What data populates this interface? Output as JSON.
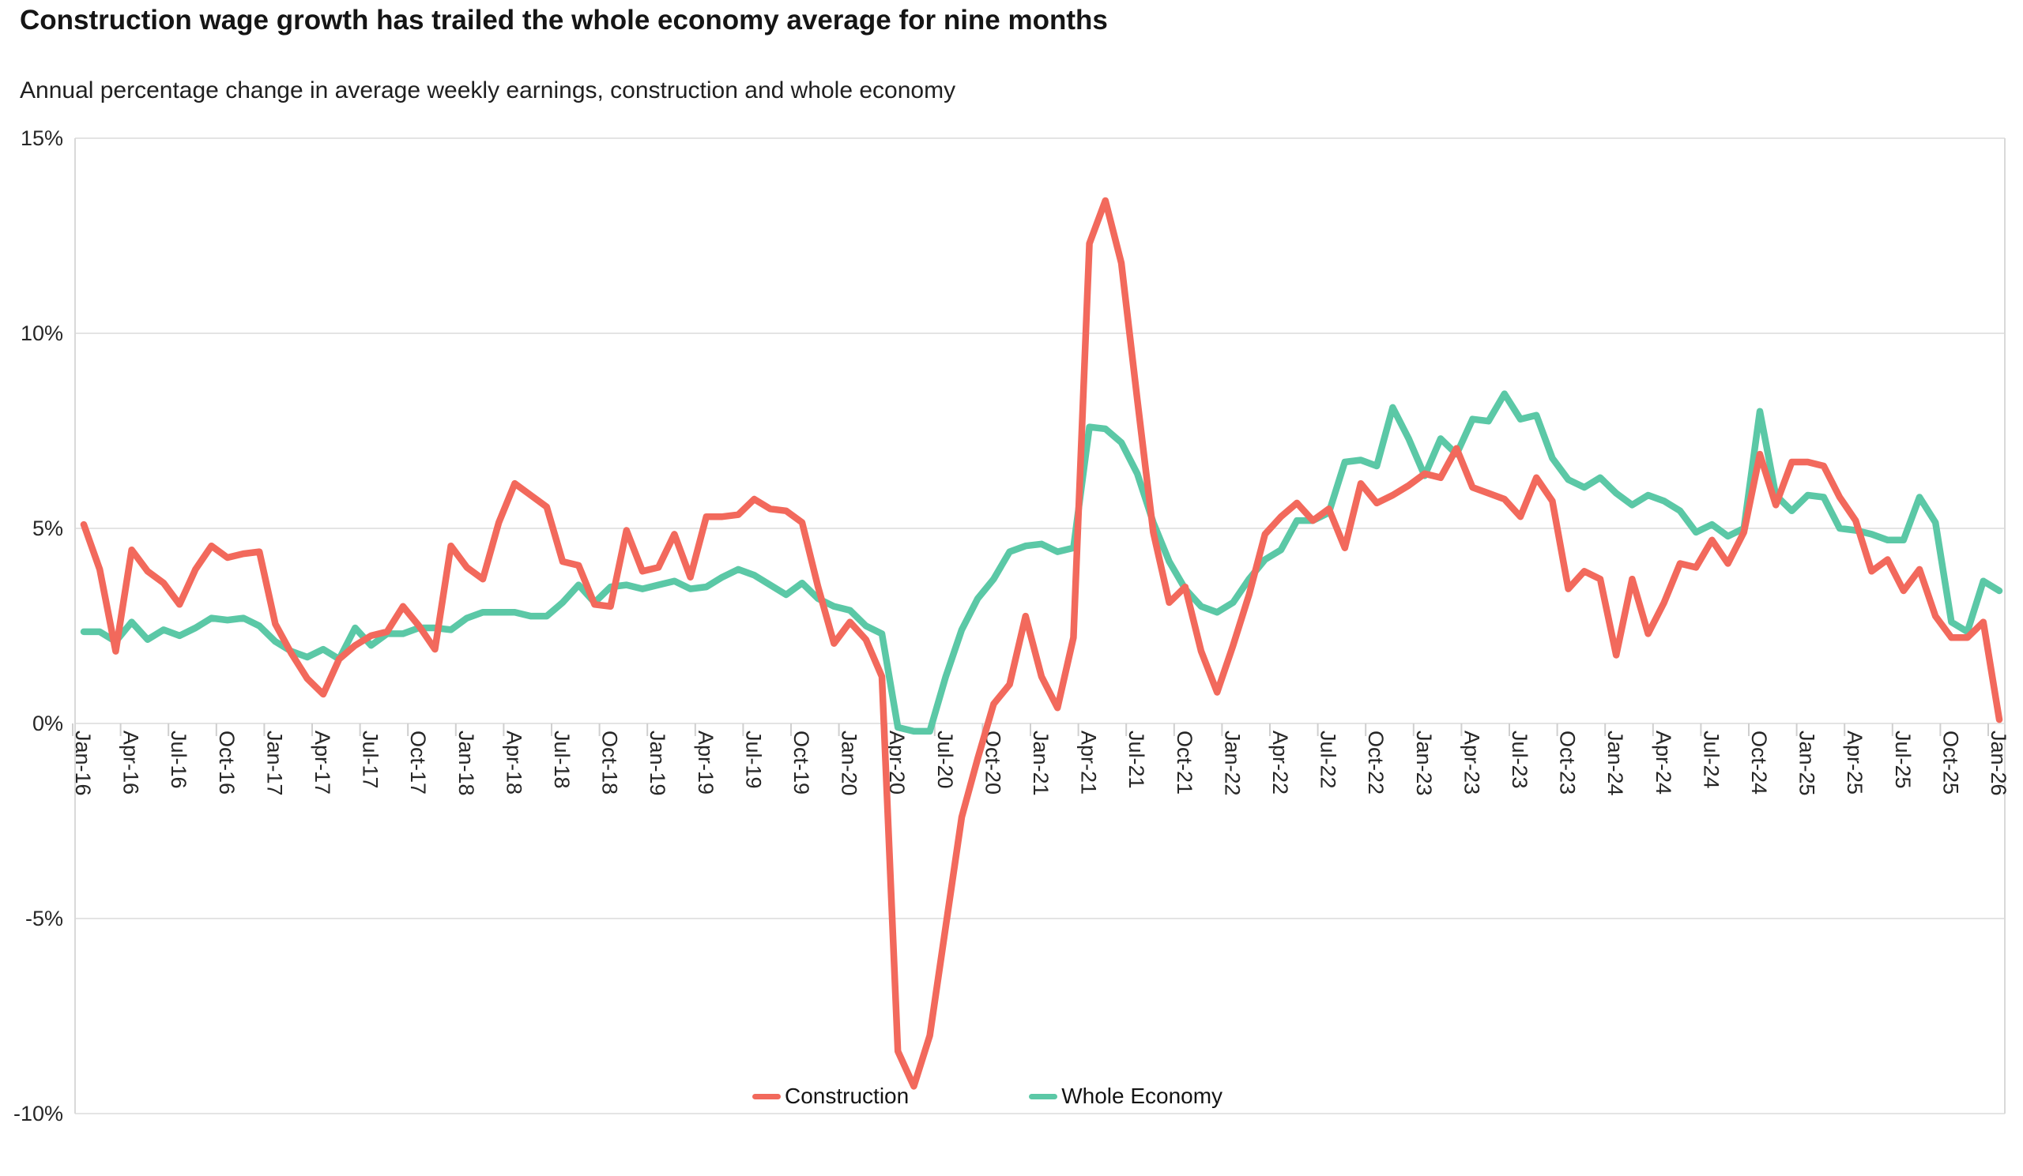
{
  "title": "Construction wage growth has trailed the whole economy average for nine months",
  "subtitle": "Annual percentage change in average weekly earnings, construction and whole economy",
  "colors": {
    "construction": "#f2695c",
    "whole_economy": "#5bc8a6",
    "gridline": "#e4e4e4",
    "axis_border": "#d9d9d9",
    "tick": "#cfcfcf",
    "label_text": "#262626"
  },
  "legend": {
    "items": [
      {
        "label": "Construction",
        "color": "#f2695c"
      },
      {
        "label": "Whole Economy",
        "color": "#5bc8a6"
      }
    ]
  },
  "y_axis": {
    "tick_labels": [
      "15%",
      "10%",
      "5%",
      "0%",
      "-5%",
      "-10%"
    ],
    "tick_values": [
      15,
      10,
      5,
      0,
      -5,
      -10
    ]
  },
  "x_axis": {
    "tick_labels": [
      "Jan-16",
      "Apr-16",
      "Jul-16",
      "Oct-16",
      "Jan-17",
      "Apr-17",
      "Jul-17",
      "Oct-17",
      "Jan-18",
      "Apr-18",
      "Jul-18",
      "Oct-18",
      "Jan-19",
      "Apr-19",
      "Jul-19",
      "Oct-19",
      "Jan-20",
      "Apr-20",
      "Jul-20",
      "Oct-20",
      "Jan-21",
      "Apr-21",
      "Jul-21",
      "Oct-21",
      "Jan-22",
      "Apr-22",
      "Jul-22",
      "Oct-22",
      "Jan-23",
      "Apr-23",
      "Jul-23",
      "Oct-23",
      "Jan-24",
      "Apr-24",
      "Jul-24",
      "Oct-24",
      "Jan-25",
      "Apr-25",
      "Jul-25",
      "Oct-25",
      "Jan-26"
    ],
    "months_per_tick": 3
  },
  "chart_data": {
    "type": "line",
    "x_start": "Jan-16",
    "x_end": "Jan-26",
    "x_frequency": "monthly",
    "ylim": [
      -10,
      15
    ],
    "grid": "horizontal",
    "legend_position": "bottom-center",
    "series": [
      {
        "name": "Whole Economy",
        "color": "#5bc8a6",
        "values": [
          2.35,
          2.35,
          2.1,
          2.6,
          2.15,
          2.4,
          2.25,
          2.45,
          2.7,
          2.65,
          2.7,
          2.5,
          2.1,
          1.85,
          1.7,
          1.9,
          1.65,
          2.45,
          2.0,
          2.3,
          2.3,
          2.45,
          2.45,
          2.4,
          2.7,
          2.85,
          2.85,
          2.85,
          2.75,
          2.75,
          3.1,
          3.55,
          3.1,
          3.5,
          3.55,
          3.45,
          3.55,
          3.65,
          3.45,
          3.5,
          3.75,
          3.95,
          3.8,
          3.55,
          3.3,
          3.6,
          3.2,
          3.0,
          2.9,
          2.5,
          2.3,
          -0.1,
          -0.2,
          -0.2,
          1.2,
          2.4,
          3.2,
          3.7,
          4.4,
          4.55,
          4.6,
          4.4,
          4.5,
          7.6,
          7.55,
          7.2,
          6.4,
          5.15,
          4.15,
          3.45,
          3.0,
          2.85,
          3.1,
          3.7,
          4.2,
          4.45,
          5.2,
          5.2,
          5.4,
          6.7,
          6.75,
          6.6,
          8.1,
          7.3,
          6.35,
          7.3,
          6.9,
          7.8,
          7.75,
          8.45,
          7.8,
          7.9,
          6.8,
          6.25,
          6.05,
          6.3,
          5.9,
          5.6,
          5.85,
          5.7,
          5.45,
          4.9,
          5.1,
          4.8,
          5.0,
          8.0,
          5.85,
          5.45,
          5.85,
          5.8,
          5.0,
          4.95,
          4.85,
          4.7,
          4.7,
          5.8,
          5.15,
          2.6,
          2.35,
          3.65,
          3.4
        ]
      },
      {
        "name": "Construction",
        "color": "#f2695c",
        "values": [
          5.1,
          3.95,
          1.85,
          4.45,
          3.9,
          3.6,
          3.05,
          3.95,
          4.55,
          4.25,
          4.35,
          4.4,
          2.55,
          1.8,
          1.15,
          0.75,
          1.65,
          2.0,
          2.25,
          2.35,
          3.0,
          2.5,
          1.9,
          4.55,
          4.0,
          3.7,
          5.15,
          6.15,
          5.85,
          5.55,
          4.15,
          4.05,
          3.05,
          3.0,
          4.95,
          3.9,
          4.0,
          4.85,
          3.75,
          5.3,
          5.3,
          5.35,
          5.75,
          5.5,
          5.45,
          5.15,
          3.5,
          2.05,
          2.6,
          2.15,
          1.2,
          -8.4,
          -9.3,
          -8.0,
          -5.2,
          -2.4,
          -0.9,
          0.5,
          1.0,
          2.75,
          1.2,
          0.4,
          2.2,
          12.3,
          13.4,
          11.8,
          8.3,
          4.9,
          3.1,
          3.5,
          1.85,
          0.8,
          2.0,
          3.3,
          4.85,
          5.3,
          5.65,
          5.2,
          5.5,
          4.5,
          6.15,
          5.65,
          5.85,
          6.1,
          6.4,
          6.3,
          7.05,
          6.05,
          5.9,
          5.75,
          5.3,
          6.3,
          5.7,
          3.45,
          3.9,
          3.7,
          1.75,
          3.7,
          2.3,
          3.1,
          4.1,
          4.0,
          4.7,
          4.1,
          4.9,
          6.9,
          5.6,
          6.7,
          6.7,
          6.6,
          5.8,
          5.2,
          3.9,
          4.2,
          3.4,
          3.95,
          2.75,
          2.2,
          2.2,
          2.6,
          0.1
        ]
      }
    ]
  }
}
